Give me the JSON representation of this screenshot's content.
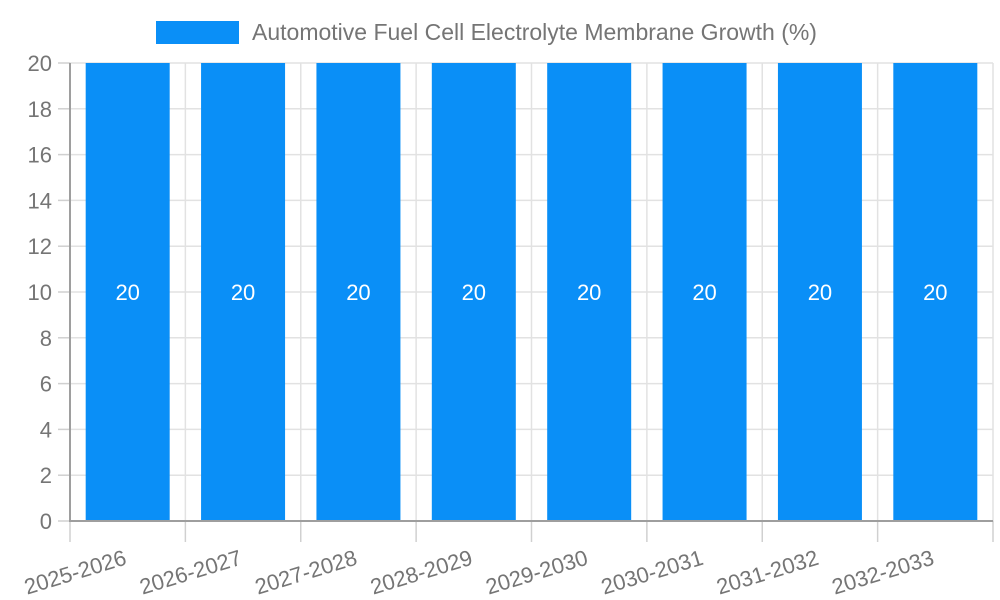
{
  "chart_data": {
    "type": "bar",
    "title": "Automotive Fuel Cell Electrolyte Membrane Growth (%)",
    "categories": [
      "2025-2026",
      "2026-2027",
      "2027-2028",
      "2028-2029",
      "2029-2030",
      "2030-2031",
      "2031-2032",
      "2032-2033"
    ],
    "series": [
      {
        "name": "Automotive Fuel Cell Electrolyte Membrane Growth (%)",
        "values": [
          20,
          20,
          20,
          20,
          20,
          20,
          20,
          20
        ]
      }
    ],
    "bar_value_labels": [
      "20",
      "20",
      "20",
      "20",
      "20",
      "20",
      "20",
      "20"
    ],
    "xlabel": "",
    "ylabel": "",
    "ylim": [
      0,
      20
    ],
    "ytick_step": 2,
    "ytick_labels": [
      "0",
      "2",
      "4",
      "6",
      "8",
      "10",
      "12",
      "14",
      "16",
      "18",
      "20"
    ],
    "grid": true,
    "legend_position": "top",
    "colors": {
      "bar": "#0a8ff7",
      "bar_label": "#ffffff",
      "axis_text": "#757575",
      "legend_text": "#757575",
      "axis_line": "#9e9e9e",
      "gridline": "#e2e2e2",
      "tick": "#d0d0d0",
      "background": "#ffffff"
    }
  },
  "legend": {
    "items": [
      {
        "label": "Automotive Fuel Cell Electrolyte Membrane Growth (%)",
        "color": "#0a8ff7"
      }
    ]
  }
}
